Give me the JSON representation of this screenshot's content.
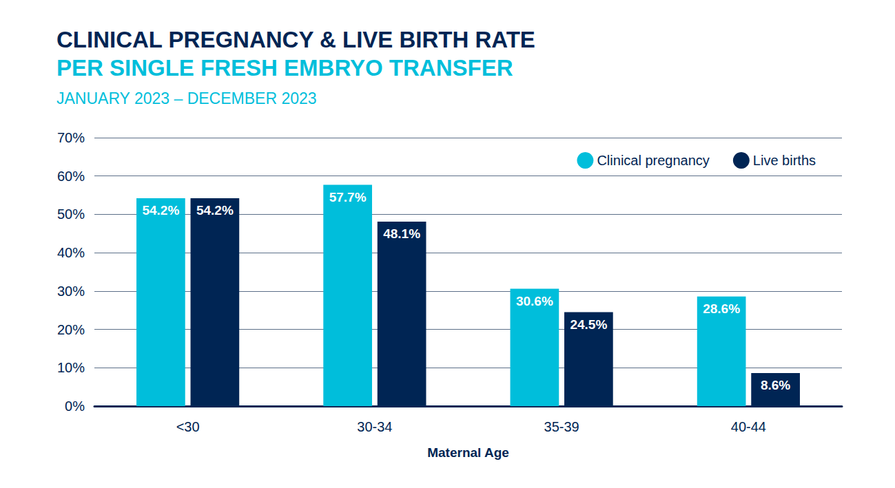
{
  "chart_data": {
    "type": "bar",
    "title": "CLINICAL PREGNANCY & LIVE BIRTH RATE",
    "subtitle": [
      "PER SINGLE FRESH EMBRYO TRANSFER",
      "JANUARY 2023 – DECEMBER 2023"
    ],
    "xlabel": "Maternal Age",
    "categories": [
      "<30",
      "30-34",
      "35-39",
      "40-44"
    ],
    "series": [
      {
        "name": "Clinical pregnancy",
        "color": "#00bedb",
        "values": [
          54.2,
          57.7,
          30.6,
          28.6
        ],
        "value_labels": [
          "54.2%",
          "57.7%",
          "30.6%",
          "28.6%"
        ]
      },
      {
        "name": "Live births",
        "color": "#002554",
        "values": [
          54.2,
          48.1,
          24.5,
          8.6
        ],
        "value_labels": [
          "54.2%",
          "48.1%",
          "24.5%",
          "8.6%"
        ]
      }
    ],
    "ylim": [
      0,
      70
    ],
    "yticks": [
      {
        "value": 0,
        "label": "0%"
      },
      {
        "value": 10,
        "label": "10%"
      },
      {
        "value": 20,
        "label": "20%"
      },
      {
        "value": 30,
        "label": "30%"
      },
      {
        "value": 40,
        "label": "40%"
      },
      {
        "value": 50,
        "label": "50%"
      },
      {
        "value": 60,
        "label": "60%"
      },
      {
        "value": 70,
        "label": "70%"
      }
    ],
    "grid": true,
    "legend": "upper right",
    "data_labels": true
  }
}
